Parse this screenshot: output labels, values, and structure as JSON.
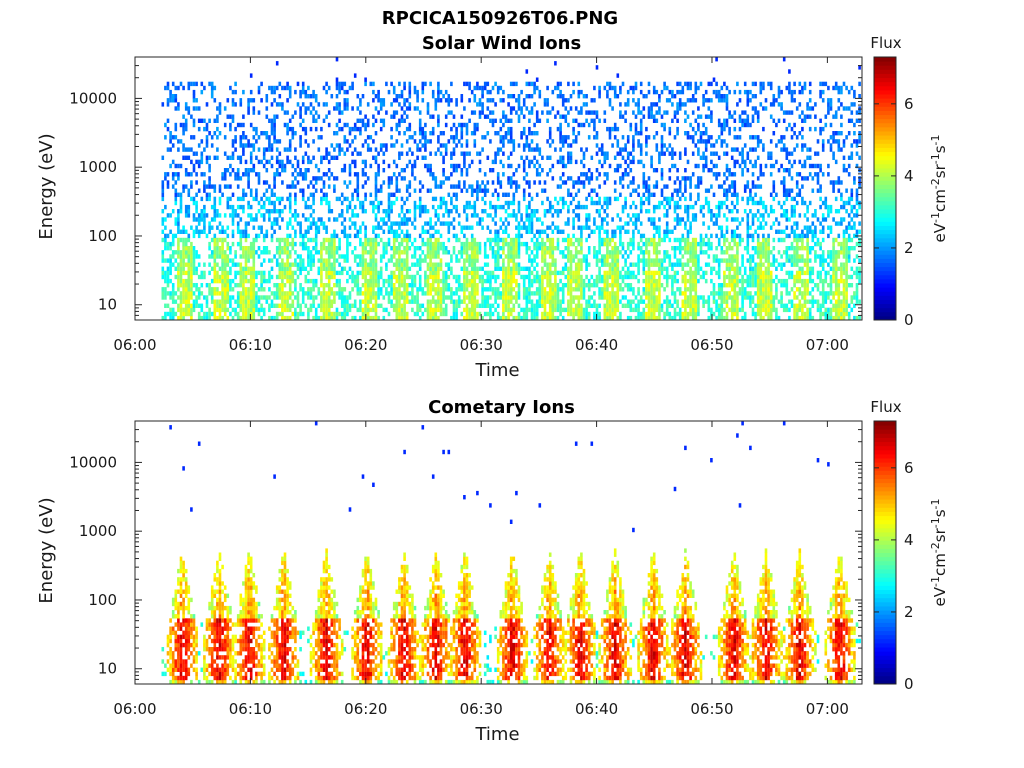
{
  "figure_title": "RPCICA150926T06.PNG",
  "colorbar": {
    "title": "Flux",
    "label_base": "eV",
    "label_parts": [
      {
        "t": "eV",
        "sup": false
      },
      {
        "t": "-1",
        "sup": true
      },
      {
        "t": "cm",
        "sup": false
      },
      {
        "t": "-2",
        "sup": true
      },
      {
        "t": "sr",
        "sup": false
      },
      {
        "t": "-1",
        "sup": true
      },
      {
        "t": "s",
        "sup": false
      },
      {
        "t": "-1",
        "sup": true
      }
    ],
    "ticks": [
      "0",
      "2",
      "4",
      "6"
    ],
    "range": [
      0,
      7.3
    ]
  },
  "chart_data": [
    {
      "type": "heatmap",
      "title": "Solar Wind Ions",
      "xlabel": "Time",
      "ylabel": "Energy (eV)",
      "x_ticks": [
        "06:00",
        "06:10",
        "06:20",
        "06:30",
        "06:40",
        "06:50",
        "07:00"
      ],
      "y_ticks": [
        "10",
        "100",
        "1000",
        "10000"
      ],
      "y_scale": "log",
      "xlim_minutes": [
        0,
        63
      ],
      "ylim_eV": [
        6,
        40000
      ],
      "data_start_minute": 2.3,
      "color_range": [
        0,
        7.3
      ],
      "profile": "solar_wind",
      "bursts_minute": [
        4.3,
        7.3,
        9.7,
        13.0,
        16.6,
        20.2,
        23.0,
        25.9,
        29.0,
        32.4,
        35.7,
        38.1,
        41.2,
        44.8,
        48.0,
        51.5,
        54.5,
        57.6,
        61.0
      ]
    },
    {
      "type": "heatmap",
      "title": "Cometary Ions",
      "xlabel": "Time",
      "ylabel": "Energy (eV)",
      "x_ticks": [
        "06:00",
        "06:10",
        "06:20",
        "06:30",
        "06:40",
        "06:50",
        "07:00"
      ],
      "y_ticks": [
        "10",
        "100",
        "1000",
        "10000"
      ],
      "y_scale": "log",
      "xlim_minutes": [
        0,
        63
      ],
      "ylim_eV": [
        6,
        40000
      ],
      "data_start_minute": 2.3,
      "color_range": [
        0,
        7.3
      ],
      "profile": "cometary",
      "bursts_minute": [
        4.0,
        7.2,
        9.8,
        12.8,
        16.5,
        20.0,
        23.2,
        26.0,
        28.5,
        32.6,
        35.8,
        38.5,
        41.5,
        44.8,
        47.6,
        51.8,
        54.6,
        57.5,
        61.0
      ]
    }
  ]
}
